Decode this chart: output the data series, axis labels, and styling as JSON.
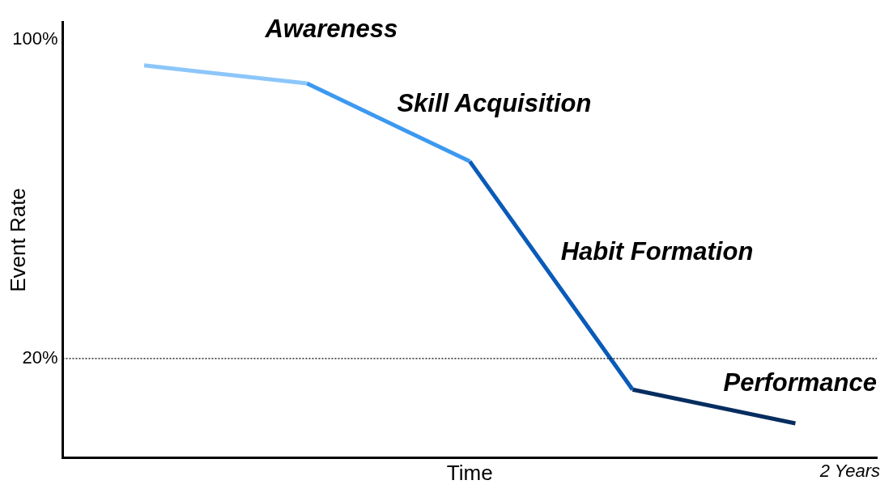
{
  "chart_data": {
    "type": "line",
    "xlabel": "Time",
    "ylabel": "Event Rate",
    "categories": [
      null,
      null,
      null,
      null,
      null
    ],
    "ylim": [
      -5,
      104.5
    ],
    "yticks": [
      {
        "value": 100,
        "label": "100%"
      },
      {
        "value": 20,
        "label": "20%"
      }
    ],
    "tick_labels": "y",
    "grid": false,
    "legend": false,
    "marker": "none",
    "line_style": "solid",
    "series": [
      {
        "color": "#8cc6fa",
        "values": [
          93.6,
          89.1,
          null,
          null,
          null
        ]
      },
      {
        "color": "#3d99f0",
        "values": [
          null,
          89.1,
          69.5,
          null,
          null
        ]
      },
      {
        "color": "#0a5bb8",
        "values": [
          null,
          null,
          69.5,
          12.2,
          null
        ]
      },
      {
        "color": "#062d60",
        "values": [
          null,
          null,
          null,
          12.2,
          3.7
        ]
      }
    ],
    "ref_lines": [
      {
        "axis": "y",
        "value": 20,
        "line_style": "dotted",
        "color": "#000000"
      }
    ],
    "annotations": [
      "Awareness",
      "Skill Acquisition",
      "Habit Formation",
      "Performance",
      "2 Years"
    ]
  }
}
